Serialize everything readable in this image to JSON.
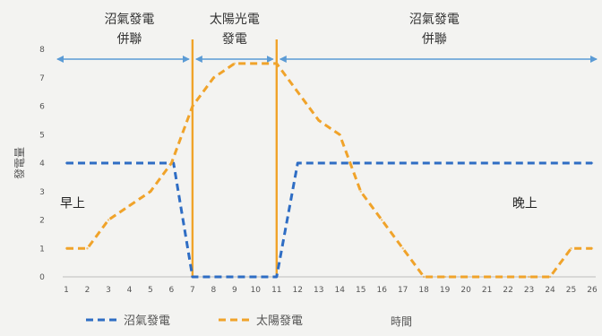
{
  "chart_data": {
    "type": "line",
    "x": [
      1,
      2,
      3,
      4,
      5,
      6,
      7,
      8,
      9,
      10,
      11,
      12,
      13,
      14,
      15,
      16,
      17,
      18,
      19,
      20,
      21,
      22,
      23,
      24,
      25,
      26
    ],
    "x_ticks": [
      "1",
      "2",
      "3",
      "4",
      "5",
      "6",
      "7",
      "8",
      "9",
      "10",
      "11",
      "12",
      "13",
      "14",
      "15",
      "16",
      "17",
      "18",
      "19",
      "20",
      "21",
      "22",
      "23",
      "24",
      "25",
      "26"
    ],
    "y_ticks": [
      "0",
      "1",
      "2",
      "3",
      "4",
      "5",
      "6",
      "7",
      "8"
    ],
    "xlim": [
      1,
      26
    ],
    "ylim": [
      0,
      8
    ],
    "xlabel": "時間",
    "ylabel": "發電量",
    "series": [
      {
        "name": "沼氣發電",
        "color": "#2e6dc4",
        "x": [
          1,
          6.1,
          7,
          11,
          12,
          26
        ],
        "values": [
          4,
          4,
          0,
          0,
          4,
          4
        ]
      },
      {
        "name": "太陽發電",
        "color": "#f0a32a",
        "x": [
          1,
          2,
          3,
          4,
          5,
          6,
          7,
          8,
          9,
          10,
          11,
          12,
          13,
          14,
          15,
          16,
          17,
          18,
          19,
          20,
          21,
          22,
          23,
          24,
          25,
          26
        ],
        "values": [
          1,
          1,
          2,
          2.5,
          3,
          4,
          6,
          7,
          7.5,
          7.5,
          7.5,
          6.5,
          5.5,
          5,
          3,
          2,
          1,
          0,
          0,
          0,
          0,
          0,
          0,
          0,
          1,
          1
        ]
      }
    ],
    "phase_dividers": [
      7,
      11
    ],
    "phases": [
      {
        "line1": "沼氣發電",
        "line2": "併聯",
        "from": 1,
        "to": 7
      },
      {
        "line1": "太陽光電",
        "line2": "發電",
        "from": 7,
        "to": 11
      },
      {
        "line1": "沼氣發電",
        "line2": "併聯",
        "from": 11,
        "to": 26
      }
    ],
    "annotations": [
      {
        "text": "早上",
        "x": 1.3,
        "y": 2.6
      },
      {
        "text": "晚上",
        "x": 22.8,
        "y": 2.6
      }
    ],
    "colors": {
      "divider": "#f0a32a",
      "arrow": "#5b9bd5",
      "axis": "#bdbdbd"
    },
    "legend_position": "bottom"
  }
}
